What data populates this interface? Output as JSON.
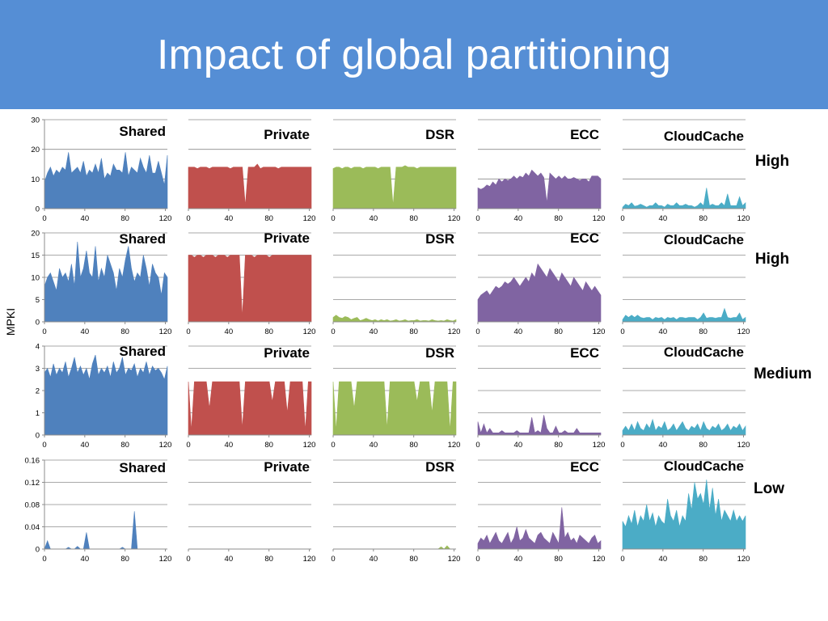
{
  "slide": {
    "title": "Impact of global partitioning"
  },
  "chart_data": {
    "type": "area",
    "ylabel": "MPKI",
    "x_ticks": [
      "0",
      "40",
      "80",
      "120"
    ],
    "xlim": [
      0,
      122
    ],
    "colors": {
      "Shared": "#4f81bd",
      "Private": "#c0504d",
      "DSR": "#9bbb59",
      "ECC": "#8064a2",
      "CloudCache": "#4bacc6"
    },
    "rows": [
      {
        "label": "High",
        "ylim": [
          0,
          30
        ],
        "y_ticks": [
          "0",
          "10",
          "20",
          "30"
        ],
        "panels": [
          {
            "name": "Shared",
            "label": "Shared",
            "show_y_axis": true,
            "levels": [
              9,
              12,
              14,
              11,
              13,
              12,
              14,
              13,
              19,
              12,
              13,
              14,
              12,
              16,
              11,
              13,
              12,
              15,
              12,
              17,
              10,
              12,
              11,
              15,
              13,
              13,
              12,
              19,
              11,
              14,
              13,
              12,
              17,
              14,
              12,
              18,
              12,
              12,
              16,
              12,
              8,
              18
            ]
          },
          {
            "name": "Private",
            "label": "Private",
            "show_y_axis": false,
            "levels": [
              14,
              14,
              14,
              13.5,
              14,
              14,
              14,
              13.5,
              14,
              14,
              14,
              14,
              14,
              14,
              13.5,
              14,
              14,
              14,
              14,
              1,
              14,
              14,
              14,
              15,
              13.5,
              14,
              14,
              14,
              14,
              14,
              13.5,
              14,
              14,
              14,
              14,
              14,
              14,
              14,
              14,
              14,
              14,
              14
            ]
          },
          {
            "name": "DSR",
            "label": "DSR",
            "show_y_axis": false,
            "levels": [
              13.5,
              14,
              14,
              13.5,
              14,
              14,
              13.5,
              14,
              14,
              14,
              13.5,
              14,
              14,
              14,
              14,
              13.5,
              14,
              14,
              14,
              14,
              1,
              14,
              14,
              14,
              14.5,
              14,
              14,
              14,
              13.5,
              14,
              14,
              14,
              14,
              14,
              14,
              14,
              14,
              14,
              14,
              14,
              14,
              14
            ]
          },
          {
            "name": "ECC",
            "label": "ECC",
            "show_y_axis": false,
            "levels": [
              7,
              6.5,
              7,
              8,
              7.5,
              9,
              8,
              10,
              9,
              10,
              9.5,
              10,
              11,
              10,
              11,
              10.5,
              12,
              11,
              13,
              12,
              11,
              12,
              10.5,
              2,
              12,
              11,
              10,
              11,
              10,
              11,
              10,
              10,
              10.5,
              10,
              9.5,
              10,
              10,
              9,
              11,
              11,
              11,
              10
            ]
          },
          {
            "name": "CloudCache",
            "label": "CloudCache",
            "show_y_axis": false,
            "levels": [
              0.5,
              1.5,
              1,
              2,
              0.8,
              1,
              1.5,
              1,
              0.5,
              1,
              1,
              2,
              1,
              1,
              0.5,
              1.5,
              1,
              1,
              2,
              1,
              1,
              1.5,
              1,
              1,
              0.5,
              1,
              2,
              1,
              7,
              1,
              1.5,
              1,
              1,
              2,
              1,
              5,
              1,
              1,
              1,
              4,
              1,
              2
            ]
          }
        ]
      },
      {
        "label": "High",
        "ylim": [
          0,
          20
        ],
        "y_ticks": [
          "0",
          "5",
          "10",
          "15",
          "20"
        ],
        "panels": [
          {
            "name": "Shared",
            "label": "Shared",
            "show_y_axis": true,
            "levels": [
              8,
              10,
              11,
              9,
              7,
              12,
              10,
              11,
              9,
              13,
              8,
              18,
              10,
              12,
              16,
              11,
              10,
              17,
              9,
              12,
              10,
              15,
              13,
              11,
              7,
              12,
              10,
              14,
              17,
              12,
              9,
              11,
              10,
              15,
              12,
              8,
              13,
              11,
              10,
              6,
              11,
              10
            ]
          },
          {
            "name": "Private",
            "label": "Private",
            "show_y_axis": false,
            "levels": [
              15,
              15,
              14.5,
              15,
              15,
              14.5,
              15,
              15,
              15,
              14.5,
              15,
              15,
              15,
              14.5,
              15,
              15,
              15,
              15,
              1,
              15,
              15,
              15,
              14.5,
              15,
              15,
              15,
              15,
              14.5,
              15,
              15,
              15,
              15,
              15,
              15,
              15,
              15,
              15,
              15,
              15,
              15,
              15,
              15
            ]
          },
          {
            "name": "DSR",
            "label": "DSR",
            "show_y_axis": false,
            "levels": [
              1,
              1.5,
              1,
              0.8,
              1.2,
              1,
              0.5,
              0.8,
              1,
              0.3,
              0.5,
              0.8,
              0.5,
              0.3,
              0.5,
              0.2,
              0.5,
              0.3,
              0.5,
              0.2,
              0.3,
              0.5,
              0.2,
              0.3,
              0.5,
              0.2,
              0.3,
              0.3,
              0.5,
              0.2,
              0.3,
              0.3,
              0.2,
              0.5,
              0.3,
              0.2,
              0.3,
              0.2,
              0.5,
              0.3,
              0.2,
              0.5
            ]
          },
          {
            "name": "ECC",
            "label": "ECC",
            "show_y_axis": false,
            "levels": [
              5,
              6,
              6.5,
              7,
              6,
              7,
              8,
              7.5,
              8,
              9,
              8.5,
              9,
              10,
              9,
              8,
              9,
              10,
              9,
              11,
              10,
              13,
              12,
              11,
              10,
              12,
              11,
              10,
              9,
              11,
              10,
              9,
              8,
              10,
              9,
              8,
              7,
              9,
              8,
              7,
              8,
              7,
              6
            ]
          },
          {
            "name": "CloudCache",
            "label": "CloudCache",
            "show_y_axis": false,
            "levels": [
              0.5,
              1.5,
              1,
              1.5,
              1,
              1.5,
              1,
              0.8,
              1,
              1,
              0.5,
              1,
              0.8,
              1,
              0.5,
              1,
              0.8,
              1,
              0.5,
              1,
              1,
              0.8,
              1,
              1,
              1,
              0.5,
              1,
              2,
              0.8,
              1,
              1,
              0.8,
              1,
              1,
              3,
              1,
              0.8,
              1,
              1,
              2,
              0.5,
              1
            ]
          }
        ]
      },
      {
        "label": "Medium",
        "ylim": [
          0,
          4
        ],
        "y_ticks": [
          "0",
          "1",
          "2",
          "3",
          "4"
        ],
        "panels": [
          {
            "name": "Shared",
            "label": "Shared",
            "show_y_axis": true,
            "levels": [
              2.8,
              3,
              2.6,
              3.2,
              2.7,
              3,
              2.8,
              3.3,
              2.6,
              3,
              3.5,
              2.8,
              3.1,
              2.7,
              3,
              2.5,
              3.2,
              3.6,
              2.7,
              3,
              2.8,
              3.1,
              2.6,
              3.3,
              2.8,
              3,
              3.5,
              2.7,
              3,
              2.9,
              3.2,
              2.6,
              3,
              2.8,
              3.3,
              2.7,
              3.1,
              2.9,
              3,
              2.8,
              2.5,
              3.1
            ]
          },
          {
            "name": "Private",
            "label": "Private",
            "show_y_axis": false,
            "levels": [
              2.4,
              0.2,
              2.4,
              2.4,
              2.4,
              2.4,
              2.4,
              1.2,
              2.4,
              2.4,
              2.4,
              2.4,
              2.4,
              2.4,
              2.4,
              2.4,
              2.4,
              2.4,
              0.3,
              2.4,
              2.4,
              2.4,
              2.4,
              2.4,
              2.4,
              2.4,
              2.4,
              2.4,
              1.5,
              2.4,
              2.4,
              2.4,
              2.4,
              1,
              2.4,
              2.4,
              2.4,
              2.4,
              2.4,
              0.2,
              2.4,
              2.4
            ]
          },
          {
            "name": "DSR",
            "label": "DSR",
            "show_y_axis": false,
            "levels": [
              2.4,
              0.2,
              2.4,
              2.4,
              2.4,
              2.4,
              2.4,
              1.2,
              2.4,
              2.4,
              2.4,
              2.4,
              2.4,
              2.4,
              2.4,
              2.4,
              2.4,
              2.4,
              0.3,
              2.4,
              2.4,
              2.4,
              2.4,
              2.4,
              2.4,
              2.4,
              2.4,
              2.4,
              1.5,
              2.4,
              2.4,
              2.4,
              2.4,
              1,
              2.4,
              2.4,
              2.4,
              2.4,
              2.4,
              0.2,
              2.4,
              2.4
            ]
          },
          {
            "name": "ECC",
            "label": "ECC",
            "show_y_axis": false,
            "levels": [
              0.6,
              0.1,
              0.5,
              0.1,
              0.3,
              0.1,
              0.1,
              0.1,
              0.2,
              0.1,
              0.1,
              0.1,
              0.1,
              0.2,
              0.1,
              0.1,
              0.1,
              0.1,
              0.8,
              0.1,
              0.2,
              0.1,
              0.9,
              0.3,
              0.1,
              0.1,
              0.4,
              0.1,
              0.1,
              0.2,
              0.1,
              0.1,
              0.1,
              0.3,
              0.1,
              0.1,
              0.1,
              0.1,
              0.1,
              0.1,
              0.1,
              0.1
            ]
          },
          {
            "name": "CloudCache",
            "label": "CloudCache",
            "show_y_axis": false,
            "levels": [
              0.2,
              0.4,
              0.2,
              0.5,
              0.2,
              0.6,
              0.3,
              0.2,
              0.5,
              0.3,
              0.7,
              0.2,
              0.4,
              0.3,
              0.6,
              0.2,
              0.3,
              0.5,
              0.2,
              0.4,
              0.6,
              0.3,
              0.2,
              0.4,
              0.3,
              0.5,
              0.2,
              0.6,
              0.3,
              0.2,
              0.4,
              0.3,
              0.5,
              0.2,
              0.3,
              0.5,
              0.2,
              0.4,
              0.3,
              0.5,
              0.2,
              0.4
            ]
          }
        ]
      },
      {
        "label": "Low",
        "ylim": [
          0,
          0.16
        ],
        "y_ticks": [
          "0",
          "0.04",
          "0.08",
          "0.12",
          "0.16"
        ],
        "panels": [
          {
            "name": "Shared",
            "label": "Shared",
            "show_y_axis": true,
            "levels": [
              0,
              0.015,
              0,
              0,
              0,
              0,
              0,
              0,
              0.003,
              0,
              0,
              0.005,
              0,
              0,
              0.03,
              0,
              0,
              0,
              0,
              0,
              0,
              0,
              0,
              0,
              0,
              0,
              0.003,
              0,
              0,
              0,
              0.068,
              0,
              0,
              0,
              0,
              0,
              0,
              0,
              0,
              0,
              0,
              0
            ]
          },
          {
            "name": "Private",
            "label": "Private",
            "show_y_axis": false,
            "levels": [
              0,
              0,
              0,
              0,
              0,
              0,
              0,
              0,
              0,
              0,
              0,
              0,
              0,
              0,
              0,
              0,
              0,
              0,
              0,
              0,
              0,
              0,
              0,
              0,
              0,
              0,
              0,
              0,
              0,
              0,
              0,
              0,
              0,
              0,
              0,
              0,
              0,
              0,
              0,
              0,
              0,
              0
            ]
          },
          {
            "name": "DSR",
            "label": "DSR",
            "show_y_axis": false,
            "levels": [
              0,
              0,
              0,
              0,
              0,
              0,
              0,
              0,
              0,
              0,
              0,
              0,
              0,
              0,
              0,
              0,
              0,
              0,
              0,
              0,
              0,
              0,
              0,
              0,
              0,
              0,
              0,
              0,
              0,
              0,
              0,
              0,
              0,
              0,
              0,
              0,
              0.004,
              0,
              0.006,
              0,
              0,
              0
            ]
          },
          {
            "name": "ECC",
            "label": "ECC",
            "show_y_axis": false,
            "levels": [
              0.01,
              0.02,
              0.015,
              0.025,
              0.01,
              0.02,
              0.03,
              0.015,
              0.01,
              0.02,
              0.03,
              0.01,
              0.02,
              0.04,
              0.015,
              0.02,
              0.035,
              0.02,
              0.015,
              0.01,
              0.025,
              0.03,
              0.02,
              0.015,
              0.01,
              0.03,
              0.02,
              0.01,
              0.075,
              0.02,
              0.03,
              0.015,
              0.02,
              0.01,
              0.025,
              0.02,
              0.015,
              0.01,
              0.02,
              0.025,
              0.01,
              0.015
            ]
          },
          {
            "name": "CloudCache",
            "label": "CloudCache",
            "show_y_axis": false,
            "levels": [
              0.05,
              0.04,
              0.06,
              0.045,
              0.07,
              0.04,
              0.06,
              0.05,
              0.08,
              0.05,
              0.065,
              0.04,
              0.06,
              0.05,
              0.045,
              0.09,
              0.06,
              0.05,
              0.07,
              0.04,
              0.06,
              0.05,
              0.1,
              0.07,
              0.12,
              0.09,
              0.1,
              0.08,
              0.125,
              0.07,
              0.11,
              0.06,
              0.09,
              0.05,
              0.07,
              0.06,
              0.05,
              0.07,
              0.05,
              0.06,
              0.05,
              0.06
            ]
          }
        ]
      }
    ]
  }
}
